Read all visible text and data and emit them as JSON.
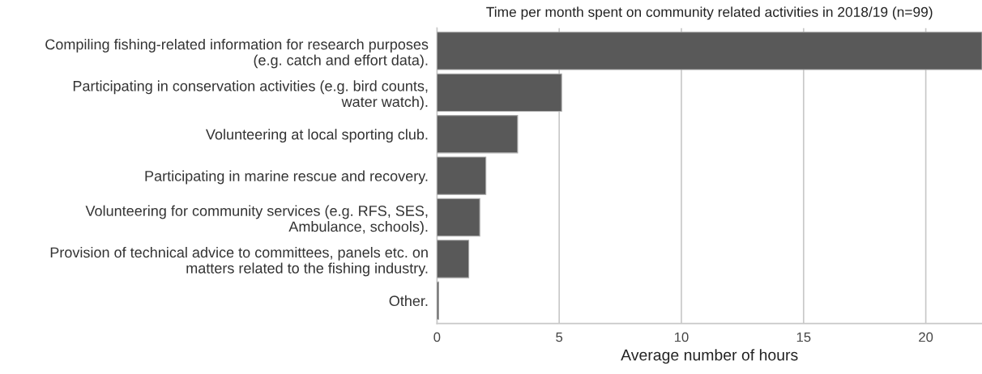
{
  "chart_data": {
    "type": "bar",
    "orientation": "horizontal",
    "title": "Time per month spent on community related activities in 2018/19 (n=99)",
    "xlabel": "Average number of hours",
    "categories": [
      "Compiling fishing-related information for research purposes\n(e.g. catch and effort data).",
      "Participating in conservation activities (e.g. bird counts,\nwater watch).",
      "Volunteering at local sporting club.",
      "Participating in marine rescue and recovery.",
      "Volunteering for community services (e.g. RFS, SES,\nAmbulance, schools).",
      "Provision of technical advice to committees, panels etc. on\nmatters related to the fishing industry.",
      "Other."
    ],
    "values": [
      22.3,
      5.1,
      3.3,
      2.0,
      1.75,
      1.3,
      0.07
    ],
    "color": "#595959",
    "xlim": [
      0,
      22.3
    ],
    "xticks": [
      0,
      5,
      10,
      15,
      20
    ],
    "grid": "x"
  }
}
